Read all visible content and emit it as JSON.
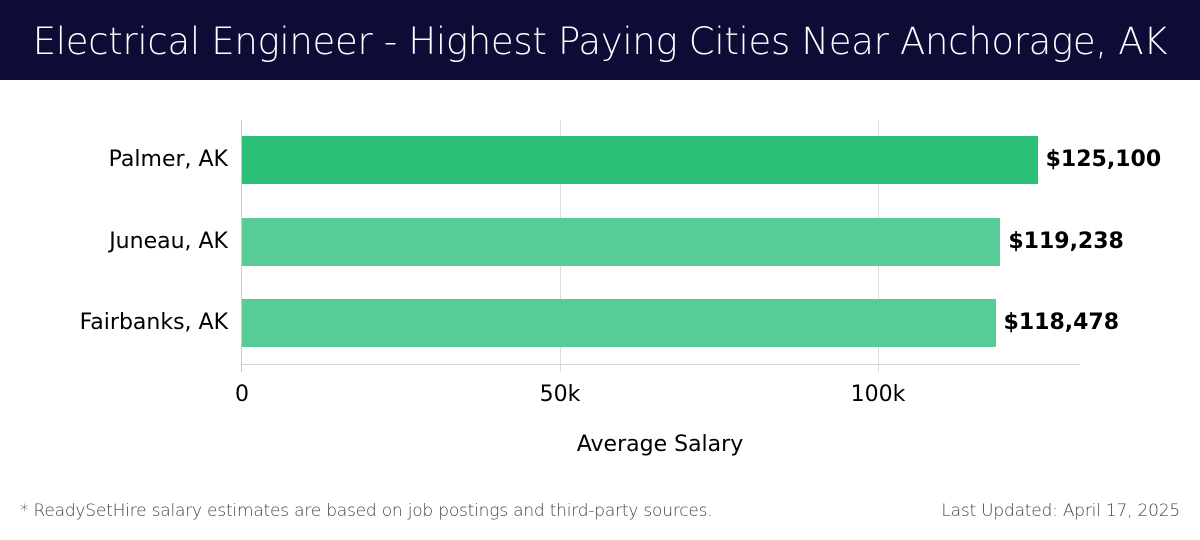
{
  "header": {
    "title": "Electrical Engineer - Highest Paying Cities Near Anchorage, AK",
    "background": "#0e0b36"
  },
  "chart_data": {
    "type": "bar",
    "orientation": "horizontal",
    "title": "Electrical Engineer - Highest Paying Cities Near Anchorage, AK",
    "categories": [
      "Palmer, AK",
      "Juneau, AK",
      "Fairbanks, AK"
    ],
    "values": [
      125100,
      119238,
      118478
    ],
    "value_labels": [
      "$125,100",
      "$119,238",
      "$118,478"
    ],
    "bar_colors": [
      "#2bbf78",
      "#57cc97",
      "#57cc97"
    ],
    "xlabel": "Average Salary",
    "ylabel": "",
    "xticks": [
      0,
      50000,
      100000
    ],
    "xtick_labels": [
      "0",
      "50k",
      "100k"
    ],
    "xlim": [
      0,
      131800
    ],
    "grid": "vertical",
    "legend": "none"
  },
  "footer": {
    "note": "* ReadySetHire salary estimates are based on job postings and third-party sources.",
    "updated": "Last Updated: April 17, 2025"
  }
}
